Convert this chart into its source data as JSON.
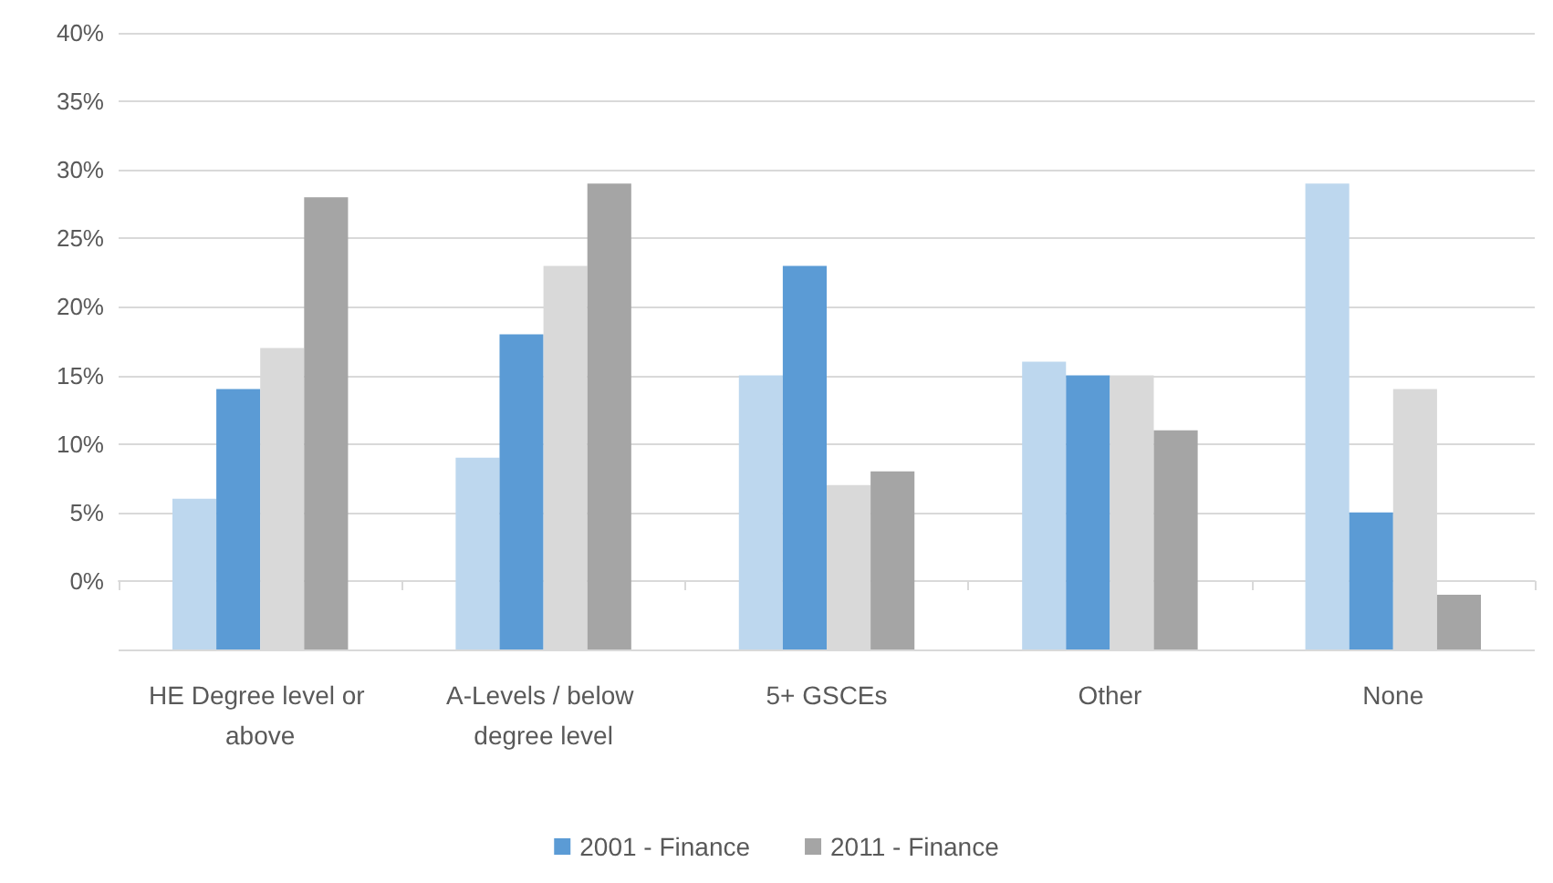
{
  "chart_data": {
    "type": "bar",
    "categories": [
      "HE Degree level or above",
      "A-Levels / below degree level",
      "5+ GSCEs",
      "Other",
      "None"
    ],
    "series": [
      {
        "color": "#bdd7ee",
        "base": [
          -5,
          -5,
          -5,
          -5,
          -5
        ],
        "values": [
          11,
          14,
          20,
          21,
          34
        ]
      },
      {
        "name": "2001 - Finance",
        "color": "#5b9bd5",
        "base": [
          -5,
          -5,
          -5,
          -5,
          -5
        ],
        "values": [
          19,
          23,
          28,
          20,
          10
        ]
      },
      {
        "color": "#d9d9d9",
        "base": [
          -5,
          -5,
          -5,
          -5,
          -5
        ],
        "values": [
          22,
          28,
          12,
          20,
          19
        ]
      },
      {
        "name": "2011 - Finance",
        "color": "#a5a5a5",
        "base": [
          -5,
          -5,
          -5,
          -5,
          -5
        ],
        "values": [
          33,
          34,
          13,
          16,
          4
        ]
      }
    ],
    "ylim": [
      -5,
      40
    ],
    "yticks": [
      {
        "value": -5,
        "label": null
      },
      {
        "value": 0,
        "label": "0%"
      },
      {
        "value": 5,
        "label": "5%"
      },
      {
        "value": 10,
        "label": "10%"
      },
      {
        "value": 15,
        "label": "15%"
      },
      {
        "value": 20,
        "label": "20%"
      },
      {
        "value": 25,
        "label": "25%"
      },
      {
        "value": 30,
        "label": "30%"
      },
      {
        "value": 35,
        "label": "35%"
      },
      {
        "value": 40,
        "label": "40%"
      }
    ],
    "grid": "y",
    "legend": "bottom"
  }
}
